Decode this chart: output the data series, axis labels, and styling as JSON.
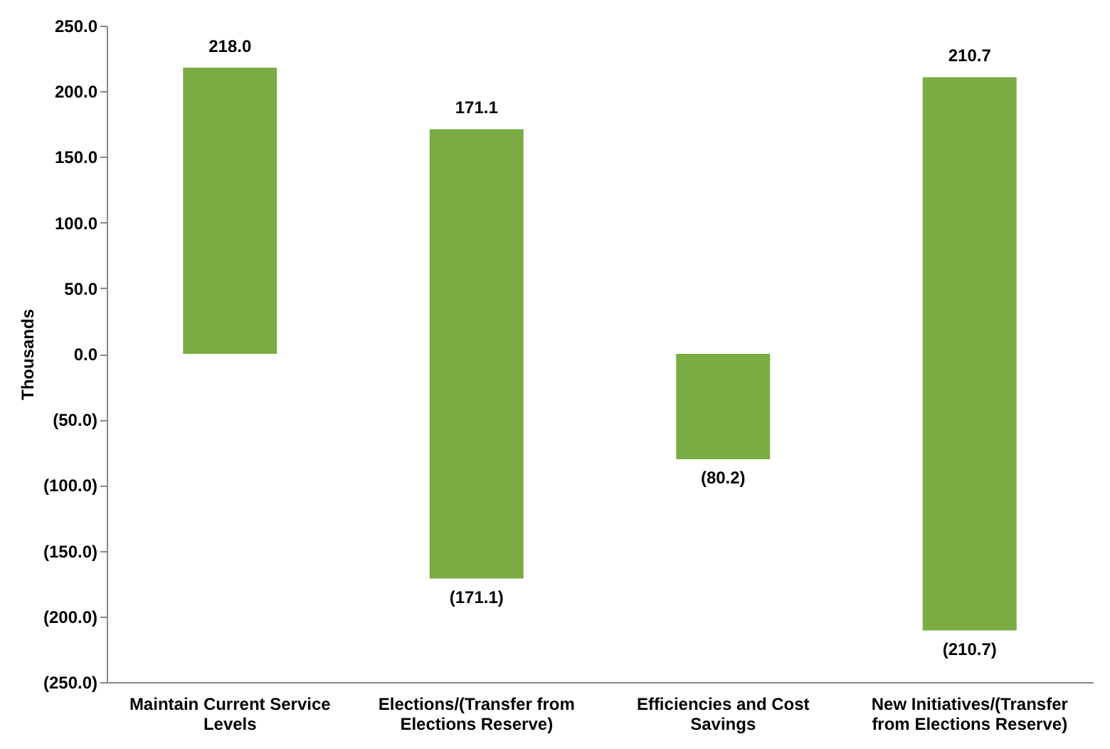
{
  "chart_data": {
    "type": "bar",
    "stacked": true,
    "ylabel": "Thousands",
    "categories": [
      "Maintain Current Service Levels",
      "Elections/(Transfer from Elections Reserve)",
      "Efficiencies and Cost Savings",
      "New Initiatives/(Transfer from Elections Reserve)"
    ],
    "series": [
      {
        "color": "#7aac43",
        "values": [
          218.0,
          171.1,
          null,
          210.7
        ],
        "value_labels": [
          "218.0",
          "171.1",
          null,
          "210.7"
        ]
      },
      {
        "color": "#7aac43",
        "values": [
          null,
          -171.1,
          -80.2,
          -210.7
        ],
        "value_labels": [
          null,
          "(171.1)",
          "(80.2)",
          "(210.7)"
        ]
      }
    ],
    "ylim": [
      -250,
      250
    ],
    "yticks": [
      {
        "value": -250,
        "label": "(250.0)"
      },
      {
        "value": -200,
        "label": "(200.0)"
      },
      {
        "value": -150,
        "label": "(150.0)"
      },
      {
        "value": -100,
        "label": "(100.0)"
      },
      {
        "value": -50,
        "label": "(50.0)"
      },
      {
        "value": 0,
        "label": "0.0"
      },
      {
        "value": 50,
        "label": "50.0"
      },
      {
        "value": 100,
        "label": "100.0"
      },
      {
        "value": 150,
        "label": "150.0"
      },
      {
        "value": 200,
        "label": "200.0"
      },
      {
        "value": 250,
        "label": "250.0"
      }
    ],
    "grid": false
  }
}
